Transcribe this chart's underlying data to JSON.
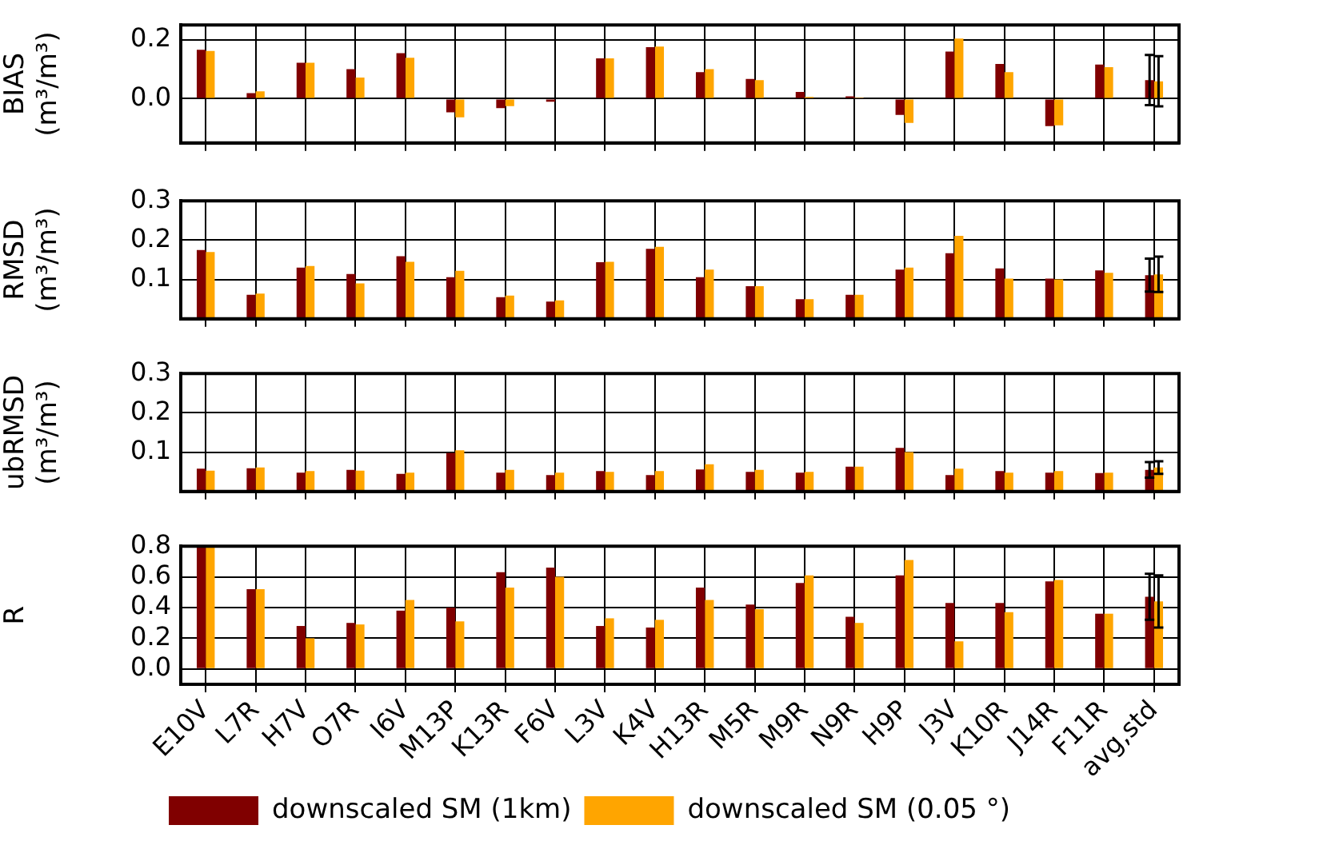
{
  "chart_data": [
    {
      "type": "bar",
      "ylabel": "BIAS (m³/m³)",
      "categories": [
        null,
        null,
        null,
        null,
        null,
        null,
        null,
        null,
        null,
        null,
        null,
        null,
        null,
        null,
        null,
        null,
        null,
        null,
        null,
        null
      ],
      "ylim": [
        -0.15,
        0.25
      ],
      "yticks": [
        {
          "value": 0,
          "label": "0.0"
        },
        {
          "value": 0.2,
          "label": "0.2"
        }
      ],
      "grid": true,
      "tick_labels": "y",
      "series": [
        {
          "color": "#800000",
          "values": [
            0.166,
            0.019,
            0.122,
            0.1,
            0.154,
            -0.046,
            -0.032,
            -0.01,
            0.137,
            0.175,
            0.09,
            0.067,
            0.023,
            0.008,
            -0.055,
            0.16,
            0.118,
            -0.093,
            0.116,
            0.063
          ],
          "errors": [
            null,
            null,
            null,
            null,
            null,
            null,
            null,
            null,
            null,
            null,
            null,
            null,
            null,
            null,
            null,
            null,
            null,
            null,
            null,
            0.085
          ]
        },
        {
          "color": "#ffa500",
          "values": [
            0.162,
            0.025,
            0.122,
            0.072,
            0.139,
            -0.063,
            -0.025,
            0,
            0.137,
            0.177,
            0.1,
            0.063,
            0.006,
            0.001,
            -0.082,
            0.204,
            0.09,
            -0.09,
            0.107,
            0.059
          ],
          "errors": [
            null,
            null,
            null,
            null,
            null,
            null,
            null,
            null,
            null,
            null,
            null,
            null,
            null,
            null,
            null,
            null,
            null,
            null,
            null,
            0.085
          ]
        }
      ]
    },
    {
      "type": "bar",
      "ylabel": "RMSD (m³/m³)",
      "categories": [
        null,
        null,
        null,
        null,
        null,
        null,
        null,
        null,
        null,
        null,
        null,
        null,
        null,
        null,
        null,
        null,
        null,
        null,
        null,
        null
      ],
      "ylim": [
        0,
        0.3
      ],
      "yticks": [
        0.1,
        0.2,
        0.3
      ],
      "grid": true,
      "tick_labels": "y",
      "series": [
        {
          "color": "#800000",
          "values": [
            0.175,
            0.061,
            0.13,
            0.114,
            0.159,
            0.106,
            0.055,
            0.044,
            0.144,
            0.178,
            0.106,
            0.083,
            0.05,
            0.061,
            0.125,
            0.167,
            0.128,
            0.102,
            0.123,
            0.111
          ],
          "errors": [
            null,
            null,
            null,
            null,
            null,
            null,
            null,
            null,
            null,
            null,
            null,
            null,
            null,
            null,
            null,
            null,
            null,
            null,
            null,
            0.042
          ]
        },
        {
          "color": "#ffa500",
          "values": [
            0.17,
            0.064,
            0.134,
            0.09,
            0.145,
            0.122,
            0.059,
            0.047,
            0.145,
            0.183,
            0.125,
            0.083,
            0.05,
            0.061,
            0.13,
            0.211,
            0.102,
            0.1,
            0.117,
            0.113
          ],
          "errors": [
            null,
            null,
            null,
            null,
            null,
            null,
            null,
            null,
            null,
            null,
            null,
            null,
            null,
            null,
            null,
            null,
            null,
            null,
            null,
            0.045
          ]
        }
      ]
    },
    {
      "type": "bar",
      "ylabel": "ubRMSD (m³/m³)",
      "categories": [
        null,
        null,
        null,
        null,
        null,
        null,
        null,
        null,
        null,
        null,
        null,
        null,
        null,
        null,
        null,
        null,
        null,
        null,
        null,
        null
      ],
      "ylim": [
        0,
        0.3
      ],
      "yticks": [
        0.1,
        0.2,
        0.3
      ],
      "grid": true,
      "tick_labels": "y",
      "series": [
        {
          "color": "#800000",
          "values": [
            0.058,
            0.059,
            0.048,
            0.055,
            0.045,
            0.098,
            0.048,
            0.042,
            0.052,
            0.042,
            0.056,
            0.05,
            0.048,
            0.063,
            0.111,
            0.042,
            0.052,
            0.048,
            0.047,
            0.055
          ],
          "errors": [
            null,
            null,
            null,
            null,
            null,
            null,
            null,
            null,
            null,
            null,
            null,
            null,
            null,
            null,
            null,
            null,
            null,
            null,
            null,
            0.02
          ]
        },
        {
          "color": "#ffa500",
          "values": [
            0.053,
            0.061,
            0.052,
            0.053,
            0.048,
            0.105,
            0.055,
            0.048,
            0.05,
            0.052,
            0.069,
            0.055,
            0.05,
            0.063,
            0.1,
            0.058,
            0.048,
            0.052,
            0.048,
            0.061
          ],
          "errors": [
            null,
            null,
            null,
            null,
            null,
            null,
            null,
            null,
            null,
            null,
            null,
            null,
            null,
            null,
            null,
            null,
            null,
            null,
            null,
            0.016
          ]
        }
      ]
    },
    {
      "type": "bar",
      "ylabel": "R",
      "categories": [
        "E10V",
        "L7R",
        "H7V",
        "O7R",
        "I6V",
        "M13P",
        "K13R",
        "F6V",
        "L3V",
        "K4V",
        "H13R",
        "M5R",
        "M9R",
        "N9R",
        "H9P",
        "J3V",
        "K10R",
        "J14R",
        "F11R",
        "avg,std"
      ],
      "ylim": [
        -0.1,
        0.8
      ],
      "yticks": [
        {
          "value": 0,
          "label": "0.0"
        },
        {
          "value": 0.2,
          "label": "0.2"
        },
        {
          "value": 0.4,
          "label": "0.4"
        },
        {
          "value": 0.6,
          "label": "0.6"
        },
        {
          "value": 0.8,
          "label": "0.8"
        }
      ],
      "grid": true,
      "legend": "bottom",
      "series": [
        {
          "name": "downscaled SM (1km)",
          "color": "#800000",
          "values": [
            0.8,
            0.52,
            0.28,
            0.3,
            0.38,
            0.4,
            0.63,
            0.66,
            0.28,
            0.27,
            0.53,
            0.42,
            0.56,
            0.34,
            0.61,
            0.43,
            0.43,
            0.57,
            0.36,
            0.47
          ],
          "errors": [
            null,
            null,
            null,
            null,
            null,
            null,
            null,
            null,
            null,
            null,
            null,
            null,
            null,
            null,
            null,
            null,
            null,
            null,
            null,
            0.15
          ]
        },
        {
          "name": "downscaled SM (0.05 °)",
          "color": "#ffa500",
          "values": [
            0.8,
            0.52,
            0.2,
            0.29,
            0.45,
            0.31,
            0.53,
            0.6,
            0.33,
            0.32,
            0.45,
            0.39,
            0.61,
            0.3,
            0.71,
            0.18,
            0.37,
            0.58,
            0.36,
            0.44
          ],
          "errors": [
            null,
            null,
            null,
            null,
            null,
            null,
            null,
            null,
            null,
            null,
            null,
            null,
            null,
            null,
            null,
            null,
            null,
            null,
            null,
            0.17
          ]
        }
      ]
    }
  ]
}
